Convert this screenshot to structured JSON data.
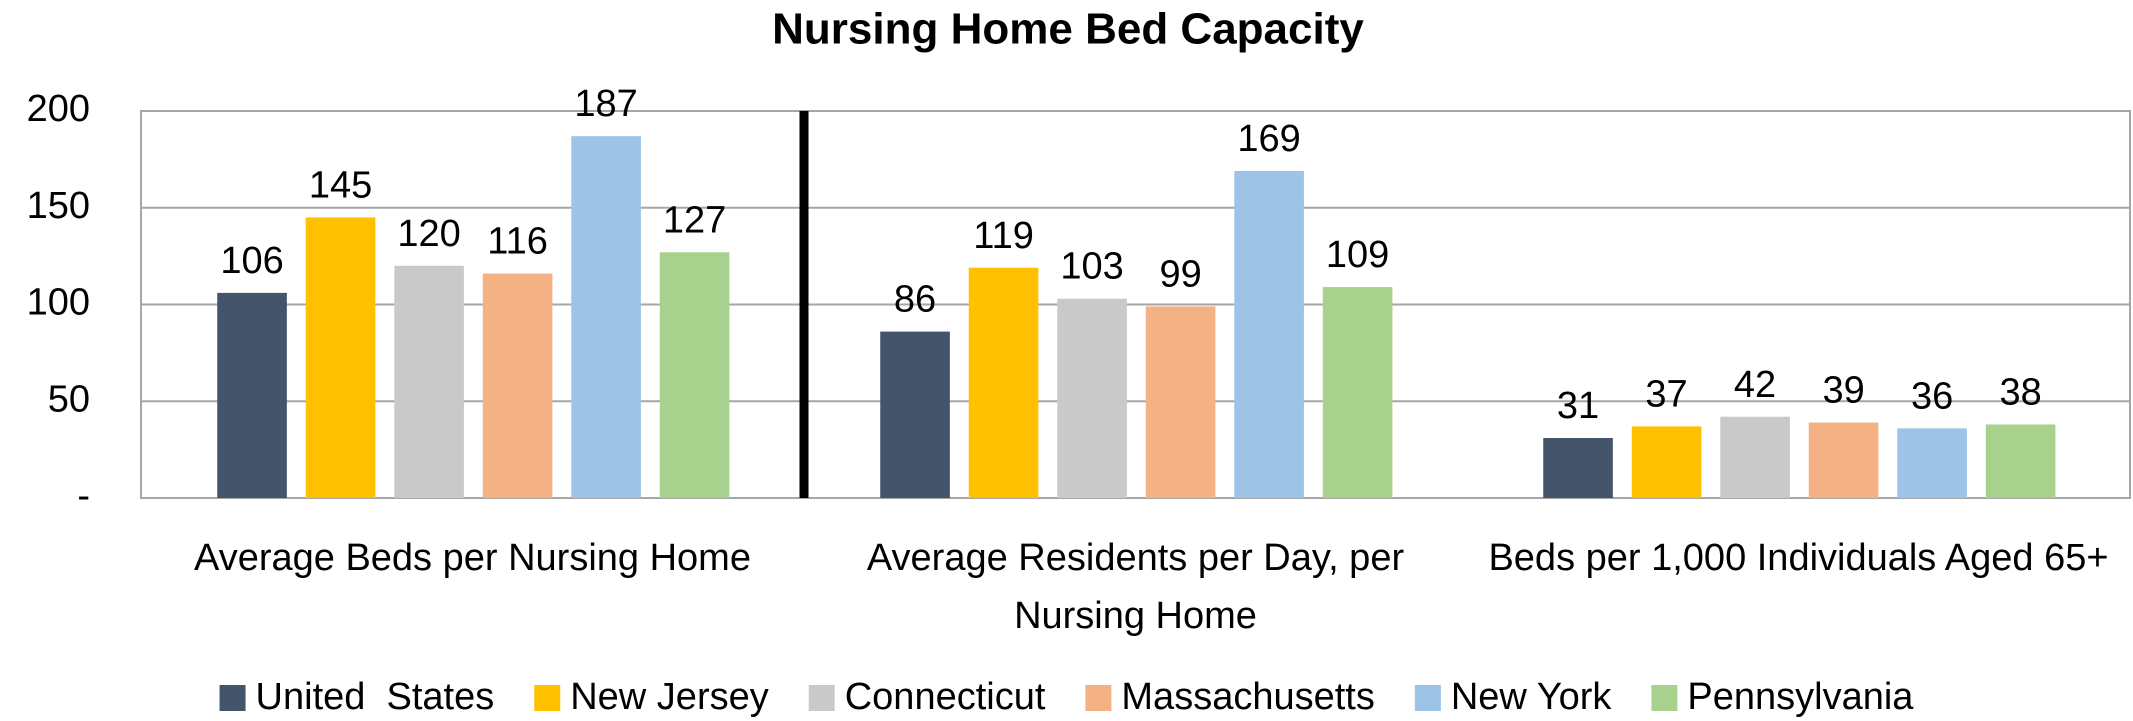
{
  "chart_data": {
    "type": "bar",
    "title": "Nursing Home Bed Capacity",
    "categories": [
      "Average Beds per Nursing Home",
      "Average Residents per Day, per Nursing Home",
      "Beds per 1,000 Individuals Aged 65+"
    ],
    "series": [
      {
        "name": "United  States",
        "color": "#44546a",
        "values": [
          106,
          86,
          31
        ]
      },
      {
        "name": "New Jersey",
        "color": "#ffc000",
        "values": [
          145,
          119,
          37
        ]
      },
      {
        "name": "Connecticut",
        "color": "#c9c9c9",
        "values": [
          120,
          103,
          42
        ]
      },
      {
        "name": "Massachusetts",
        "color": "#f4b183",
        "values": [
          116,
          99,
          39
        ]
      },
      {
        "name": "New York",
        "color": "#9dc3e6",
        "values": [
          187,
          169,
          36
        ]
      },
      {
        "name": "Pennsylvania",
        "color": "#a9d18e",
        "values": [
          127,
          109,
          38
        ]
      }
    ],
    "ylim": [
      0,
      200
    ],
    "yticks": [
      {
        "value": 0,
        "label": "-"
      },
      50,
      100,
      150,
      200
    ],
    "grid": true,
    "legend": "bottom"
  }
}
